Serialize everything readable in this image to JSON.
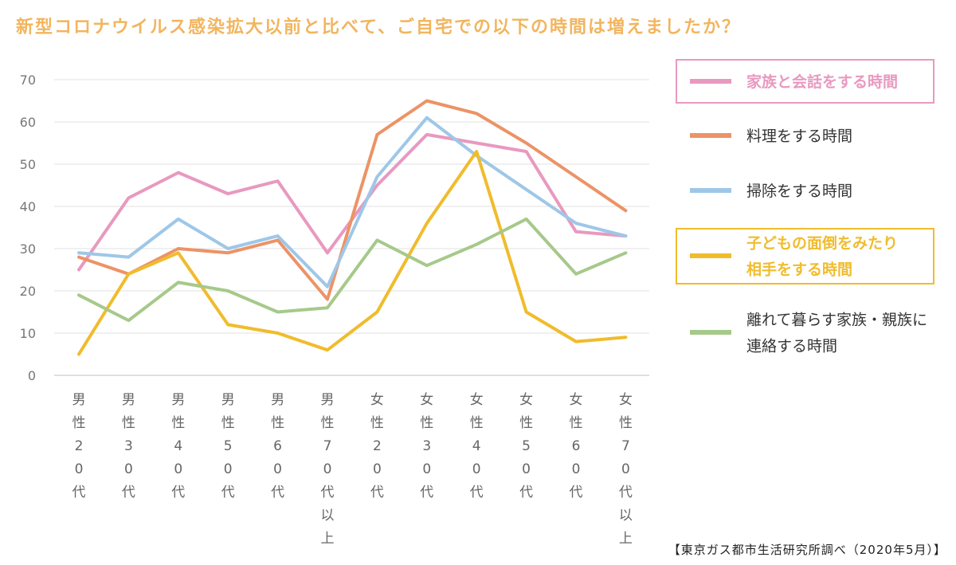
{
  "page": {
    "title": "新型コロナウイルス感染拡大以前と比べて、ご自宅での以下の時間は増えましたか？",
    "source": "【東京ガス都市生活研究所調べ（2020年5月）】"
  },
  "chart_data": {
    "type": "line",
    "title": "新型コロナウイルス感染拡大以前と比べて、ご自宅での以下の時間は増えましたか？",
    "xlabel": "",
    "ylabel": "",
    "ylim": [
      0,
      70
    ],
    "yticks": [
      0,
      10,
      20,
      30,
      40,
      50,
      60,
      70
    ],
    "grid": true,
    "legend_position": "right",
    "categories": [
      "男性20代",
      "男性30代",
      "男性40代",
      "男性50代",
      "男性60代",
      "男性70代以上",
      "女性20代",
      "女性30代",
      "女性40代",
      "女性50代",
      "女性60代",
      "女性70代以上"
    ],
    "series": [
      {
        "name": "家族と会話をする時間",
        "color": "#e899c0",
        "highlight": true,
        "legend_lines": [
          "家族と会話をする時間"
        ],
        "values": [
          25,
          42,
          48,
          43,
          46,
          29,
          45,
          57,
          55,
          53,
          34,
          33
        ]
      },
      {
        "name": "料理をする時間",
        "color": "#ec9366",
        "highlight": false,
        "legend_lines": [
          "料理をする時間"
        ],
        "values": [
          28,
          24,
          30,
          29,
          32,
          18,
          57,
          65,
          62,
          55,
          47,
          39
        ]
      },
      {
        "name": "掃除をする時間",
        "color": "#9ec7e8",
        "highlight": false,
        "legend_lines": [
          "掃除をする時間"
        ],
        "values": [
          29,
          28,
          37,
          30,
          33,
          21,
          47,
          61,
          52,
          44,
          36,
          33
        ]
      },
      {
        "name": "子どもの面倒をみたり相手をする時間",
        "color": "#f0bc2c",
        "highlight": true,
        "legend_lines": [
          "子どもの面倒をみたり",
          "相手をする時間"
        ],
        "values": [
          5,
          24,
          29,
          12,
          10,
          6,
          15,
          36,
          53,
          15,
          8,
          9
        ]
      },
      {
        "name": "離れて暮らす家族・親族に連絡する時間",
        "color": "#a6c98a",
        "highlight": false,
        "legend_lines": [
          "離れて暮らす家族・親族に",
          "連絡する時間"
        ],
        "values": [
          19,
          13,
          22,
          20,
          15,
          16,
          32,
          26,
          31,
          37,
          24,
          29
        ]
      }
    ]
  }
}
